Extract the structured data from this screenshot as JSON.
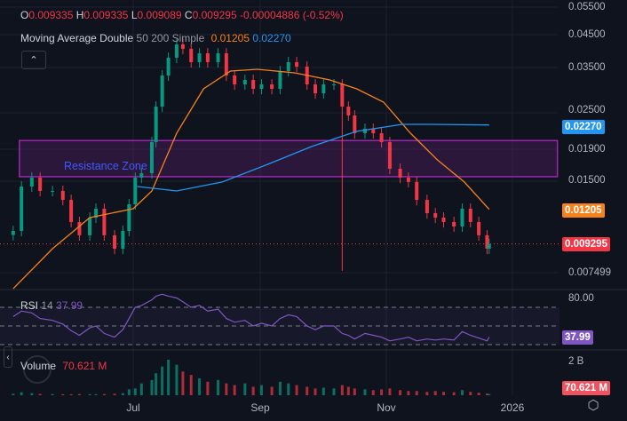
{
  "header": {
    "ohlc": {
      "o_label": "O",
      "o": "0.009335",
      "h_label": "H",
      "h": "0.009335",
      "l_label": "L",
      "l": "0.009089",
      "c_label": "C",
      "c": "0.009295",
      "change": "-0.00004886 (-0.52%)"
    },
    "indicator": {
      "name": "Moving Average Double",
      "params": "50 200 Simple",
      "ma_fast": "0.01205",
      "ma_slow": "0.02270"
    },
    "collapse_icon": "chevron-up-icon"
  },
  "rsi_legend": {
    "name": "RSI",
    "period": "14",
    "value": "37.99"
  },
  "volume_legend": {
    "name": "Volume",
    "value": "70.621 M"
  },
  "price_axis": {
    "ticks": [
      "0.05500",
      "0.04500",
      "0.03500",
      "0.02500",
      "0.01900",
      "0.01500",
      "0.007499"
    ],
    "tags": {
      "ma_slow": "0.02270",
      "ma_fast": "0.01205",
      "last": "0.009295"
    }
  },
  "rsi_axis": {
    "tick": "80.00",
    "tag": "37.99"
  },
  "volume_axis": {
    "tick": "2 B",
    "tag": "70.621 M"
  },
  "time_axis": {
    "ticks": [
      "Jul",
      "Sep",
      "Nov",
      "2026"
    ]
  },
  "colors": {
    "up": "#089981",
    "down": "#f23645",
    "ma_fast": "#f7821b",
    "ma_slow": "#2196f3",
    "rsi": "#7e57c2",
    "zone": "#9c27b0",
    "zone_text": "#3d5afe"
  },
  "icons": {
    "settings": "gear-icon",
    "collapse_left": "chevron-left-icon",
    "logo": "tradingview-logo"
  },
  "chart_data": {
    "type": "candlestick",
    "yscale": "log",
    "ylim": [
      0.0062,
      0.057
    ],
    "grid": true,
    "zone": {
      "label": "Resistance Zone",
      "top": 0.0202,
      "bottom": 0.0154,
      "from": "2025-05-07",
      "to": "2026-01-22"
    },
    "dates": [
      "2025-05-04",
      "2025-05-08",
      "2025-05-13",
      "2025-05-17",
      "2025-05-23",
      "2025-05-28",
      "2025-06-01",
      "2025-06-05",
      "2025-06-10",
      "2025-06-13",
      "2025-06-17",
      "2025-06-22",
      "2025-06-26",
      "2025-06-29",
      "2025-07-02",
      "2025-07-05",
      "2025-07-10",
      "2025-07-12",
      "2025-07-15",
      "2025-07-18",
      "2025-07-22",
      "2025-07-25",
      "2025-07-29",
      "2025-08-02",
      "2025-08-06",
      "2025-08-11",
      "2025-08-15",
      "2025-08-19",
      "2025-08-24",
      "2025-08-28",
      "2025-09-01",
      "2025-09-06",
      "2025-09-10",
      "2025-09-14",
      "2025-09-18",
      "2025-09-23",
      "2025-09-27",
      "2025-10-01",
      "2025-10-06",
      "2025-10-10",
      "2025-10-13",
      "2025-10-16",
      "2025-10-21",
      "2025-10-25",
      "2025-10-29",
      "2025-11-02",
      "2025-11-07",
      "2025-11-11",
      "2025-11-15",
      "2025-11-20",
      "2025-11-24",
      "2025-11-28",
      "2025-12-03",
      "2025-12-07",
      "2025-12-11",
      "2025-12-15",
      "2025-12-19",
      "2025-12-20"
    ],
    "close": [
      0.01025,
      0.01431,
      0.01529,
      0.01384,
      0.01384,
      0.01294,
      0.01096,
      0.00992,
      0.01133,
      0.01211,
      0.00992,
      0.00897,
      0.01025,
      0.01252,
      0.01529,
      0.01581,
      0.01997,
      0.02606,
      0.03292,
      0.03761,
      0.04157,
      0.04022,
      0.03639,
      0.03888,
      0.03639,
      0.03888,
      0.03292,
      0.03079,
      0.03183,
      0.02979,
      0.03079,
      0.02979,
      0.03403,
      0.03639,
      0.03518,
      0.03079,
      0.0288,
      0.03079,
      0.03079,
      0.02606,
      0.02439,
      0.02134,
      0.02207,
      0.02134,
      0.01997,
      0.01635,
      0.01529,
      0.0148,
      0.01294,
      0.01171,
      0.01133,
      0.01096,
      0.0106,
      0.01211,
      0.01096,
      0.00992,
      0.00897,
      0.009295
    ],
    "spike_low": {
      "date": "2025-10-10",
      "low": 0.0076
    },
    "ma_fast": {
      "period": 50,
      "dates": [
        "2025-05-04",
        "2025-05-23",
        "2025-06-10",
        "2025-07-01",
        "2025-07-10",
        "2025-07-22",
        "2025-08-04",
        "2025-08-17",
        "2025-08-30",
        "2025-09-17",
        "2025-10-04",
        "2025-10-17",
        "2025-10-30",
        "2025-11-12",
        "2025-11-25",
        "2025-12-08",
        "2025-12-20"
      ],
      "values": [
        0.00665,
        0.00897,
        0.01133,
        0.01211,
        0.01384,
        0.02134,
        0.02979,
        0.03403,
        0.03449,
        0.03359,
        0.03183,
        0.02979,
        0.02695,
        0.02134,
        0.01747,
        0.0148,
        0.01205
      ]
    },
    "ma_slow": {
      "period": 200,
      "dates": [
        "2025-07-03",
        "2025-07-22",
        "2025-08-13",
        "2025-09-04",
        "2025-09-25",
        "2025-10-17",
        "2025-11-08",
        "2025-11-21",
        "2025-12-20"
      ],
      "values": [
        0.01431,
        0.01384,
        0.0148,
        0.0169,
        0.0193,
        0.02164,
        0.02281,
        0.02281,
        0.0227
      ]
    },
    "rsi": {
      "period": 14,
      "bands": [
        70,
        50,
        30
      ],
      "values": [
        60,
        66,
        64,
        58,
        56,
        52,
        45,
        40,
        48,
        50,
        42,
        38,
        46,
        58,
        70,
        72,
        78,
        82,
        84,
        82,
        80,
        76,
        70,
        72,
        66,
        68,
        58,
        54,
        56,
        50,
        53,
        50,
        58,
        62,
        60,
        50,
        46,
        50,
        50,
        42,
        40,
        36,
        42,
        40,
        38,
        34,
        36,
        38,
        34,
        36,
        35,
        36,
        35,
        44,
        40,
        37,
        34,
        37.99
      ]
    },
    "volume_m": [
      90,
      180,
      120,
      80,
      70,
      60,
      60,
      70,
      60,
      60,
      70,
      90,
      120,
      350,
      400,
      700,
      900,
      1300,
      1700,
      2100,
      1800,
      1400,
      1200,
      1000,
      800,
      900,
      700,
      600,
      700,
      500,
      600,
      500,
      800,
      700,
      600,
      500,
      400,
      450,
      400,
      600,
      500,
      400,
      350,
      300,
      350,
      400,
      300,
      250,
      250,
      200,
      250,
      200,
      180,
      300,
      200,
      150,
      100,
      70.621
    ]
  }
}
